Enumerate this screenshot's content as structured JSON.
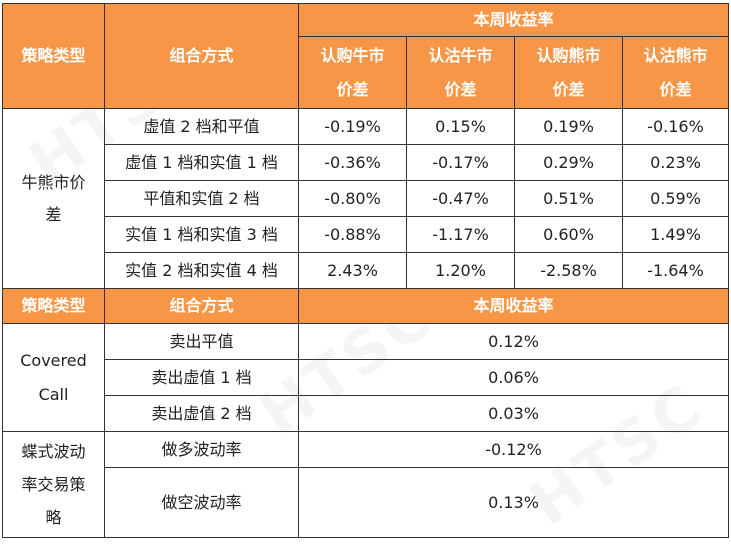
{
  "section1": {
    "headers": {
      "strategy": "策略类型",
      "combo": "组合方式",
      "weekly": "本周收益率",
      "cols": [
        [
          "认购牛市",
          "价差"
        ],
        [
          "认沽牛市",
          "价差"
        ],
        [
          "认购熊市",
          "价差"
        ],
        [
          "认沽熊市",
          "价差"
        ]
      ]
    },
    "strategy_name_lines": [
      "牛熊市价",
      "差"
    ],
    "rows": [
      {
        "combo": "虚值 2 档和平值",
        "values": [
          "-0.19%",
          "0.15%",
          "0.19%",
          "-0.16%"
        ]
      },
      {
        "combo": "虚值 1 档和实值 1 档",
        "values": [
          "-0.36%",
          "-0.17%",
          "0.29%",
          "0.23%"
        ]
      },
      {
        "combo": "平值和实值 2 档",
        "values": [
          "-0.80%",
          "-0.47%",
          "0.51%",
          "0.59%"
        ]
      },
      {
        "combo": "实值 1 档和实值 3 档",
        "values": [
          "-0.88%",
          "-1.17%",
          "0.60%",
          "1.49%"
        ]
      },
      {
        "combo": "实值 2 档和实值 4 档",
        "values": [
          "2.43%",
          "1.20%",
          "-2.58%",
          "-1.64%"
        ]
      }
    ]
  },
  "section2": {
    "headers": {
      "strategy": "策略类型",
      "combo": "组合方式",
      "weekly": "本周收益率"
    },
    "covered_call": {
      "name_lines": [
        "Covered",
        "Call"
      ],
      "rows": [
        {
          "combo": "卖出平值",
          "value": "0.12%"
        },
        {
          "combo": "卖出虚值 1 档",
          "value": "0.06%"
        },
        {
          "combo": "卖出虚值 2 档",
          "value": "0.03%"
        }
      ]
    },
    "butterfly": {
      "name_lines": [
        "蝶式波动",
        "率交易策",
        "略"
      ],
      "rows": [
        {
          "combo": "做多波动率",
          "value": "-0.12%"
        },
        {
          "combo": "做空波动率",
          "value": "0.13%"
        }
      ]
    }
  },
  "watermark_text": "HTSC",
  "colors": {
    "header_bg": "#f79646",
    "header_text": "#ffffff"
  }
}
